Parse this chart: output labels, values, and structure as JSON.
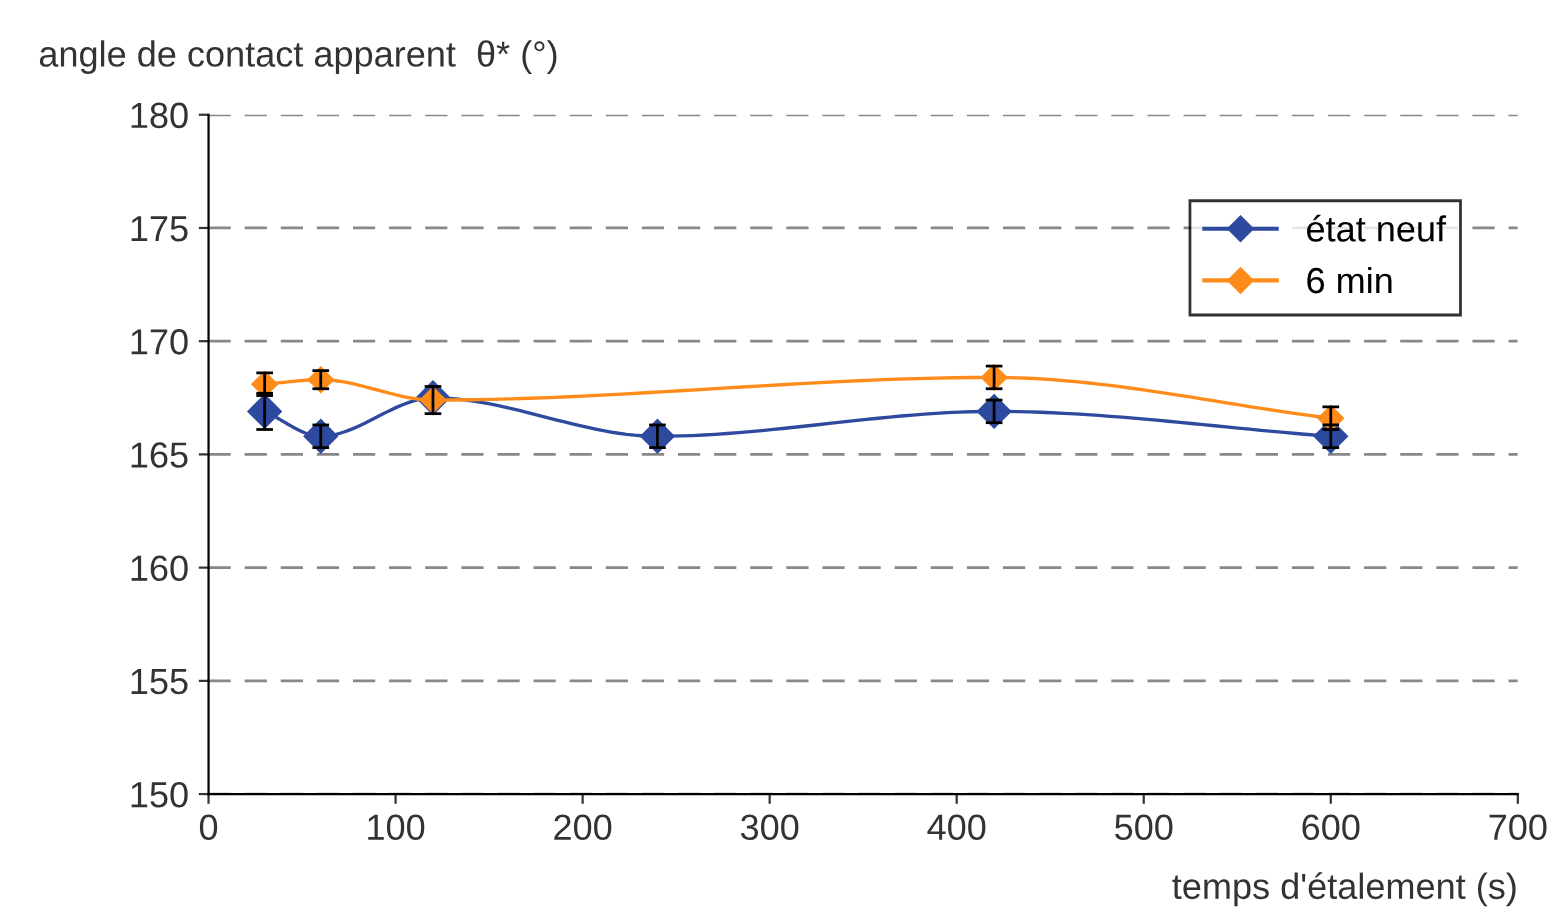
{
  "chart_data": {
    "type": "line",
    "xlabel": "temps d'étalement (s)",
    "ylabel": "angle de contact apparent  θ* (°)",
    "x": [
      30,
      60,
      120,
      240,
      420,
      600
    ],
    "series": [
      {
        "name": "état neuf",
        "color": "#2e4a9e",
        "values": [
          166.9,
          165.8,
          167.5,
          165.8,
          166.9,
          165.8
        ],
        "errors": [
          0.8,
          0.5,
          null,
          0.5,
          0.5,
          0.5
        ]
      },
      {
        "name": "6 min",
        "color": "#ff8c1a",
        "x": [
          30,
          60,
          120,
          420,
          600
        ],
        "values": [
          168.1,
          168.3,
          167.4,
          168.4,
          166.6
        ],
        "errors": [
          0.5,
          0.4,
          0.6,
          0.5,
          0.5
        ]
      }
    ],
    "xlim": [
      0,
      700
    ],
    "ylim": [
      150,
      180
    ],
    "xticks": [
      0,
      100,
      200,
      300,
      400,
      500,
      600,
      700
    ],
    "yticks": [
      150,
      155,
      160,
      165,
      170,
      175,
      180
    ],
    "grid": "y",
    "legend": "top right",
    "marker": "diamond",
    "line_style": "solid"
  }
}
